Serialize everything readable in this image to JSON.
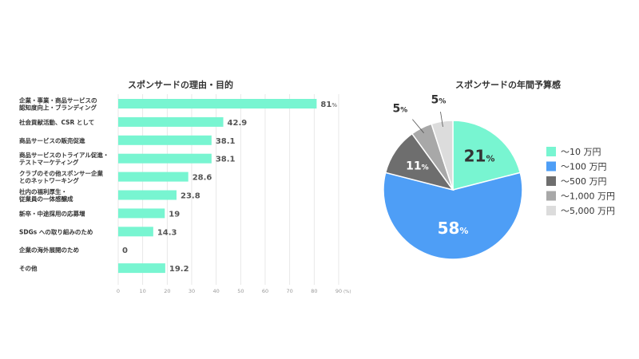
{
  "chart_data": [
    {
      "type": "bar",
      "orientation": "horizontal",
      "title": "スポンサードの理由・目的",
      "categories": [
        [
          "企業・事業・商品サービスの",
          "認知度向上・ブランディング"
        ],
        [
          "社会貢献活動、CSR として"
        ],
        [
          "商品サービスの販売促進"
        ],
        [
          "商品サービスのトライアル促進・",
          "テストマーケティング"
        ],
        [
          "クラブのその他スポンサー企業",
          "とのネットワーキング"
        ],
        [
          "社内の福利厚生・",
          "従業員の一体感醸成"
        ],
        [
          "新卒・中途採用の応募増"
        ],
        [
          "SDGs への取り組みのため"
        ],
        [
          "企業の海外展開のため"
        ],
        [
          "その他"
        ]
      ],
      "values": [
        81,
        42.9,
        38.1,
        38.1,
        28.6,
        23.8,
        19,
        14.3,
        0,
        19.2
      ],
      "value_labels": [
        "81",
        "42.9",
        "38.1",
        "38.1",
        "28.6",
        "23.8",
        "19",
        "14.3",
        "0",
        "19.2"
      ],
      "first_value_suffix": "%",
      "xlim": [
        0,
        90
      ],
      "xticks": [
        0,
        10,
        20,
        30,
        40,
        50,
        60,
        70,
        80,
        90
      ],
      "xunit": "(%)",
      "color": "#78f5d1",
      "grid": true
    },
    {
      "type": "pie",
      "title": "スポンサードの年間予算感",
      "slices": [
        {
          "label": "～10 万円",
          "value": 21,
          "color": "#78f5d1",
          "text_color": "#333333"
        },
        {
          "label": "～100 万円",
          "value": 58,
          "color": "#4e9ef6",
          "text_color": "#ffffff"
        },
        {
          "label": "～500 万円",
          "value": 11,
          "color": "#6e6e6e",
          "text_color": "#ffffff"
        },
        {
          "label": "～1,000 万円",
          "value": 5,
          "color": "#a8a8a8",
          "text_color": "#333333"
        },
        {
          "label": "～5,000 万円",
          "value": 5,
          "color": "#dcdcdc",
          "text_color": "#333333"
        }
      ],
      "value_suffix": "%",
      "legend": "right"
    }
  ]
}
